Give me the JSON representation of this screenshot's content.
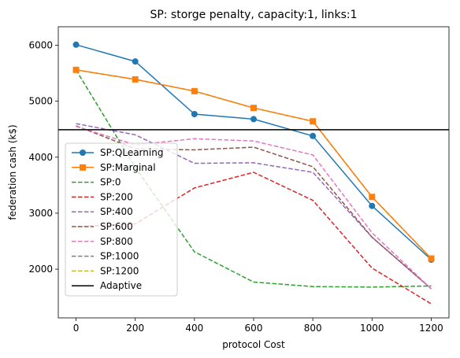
{
  "chart_data": {
    "type": "line",
    "title": "SP: storge penalty, capacity:1, links:1",
    "xlabel": "protocol Cost",
    "ylabel": "federation cash (k$)",
    "xlim": [
      -60,
      1260
    ],
    "ylim": [
      1130,
      6330
    ],
    "x_ticks": [
      0,
      200,
      400,
      600,
      800,
      1000,
      1200
    ],
    "y_ticks": [
      2000,
      3000,
      4000,
      5000,
      6000
    ],
    "grid": false,
    "legend_position": "lower-left",
    "x": [
      0,
      200,
      400,
      600,
      800,
      1000,
      1200
    ],
    "series": [
      {
        "name": "SP:QLearning",
        "color": "#1f77b4",
        "style": "solid",
        "marker": "circle",
        "values": [
          6010,
          5710,
          4770,
          4680,
          4380,
          3130,
          2170
        ]
      },
      {
        "name": "SP:Marginal",
        "color": "#ff7f0e",
        "style": "solid",
        "marker": "square",
        "values": [
          5560,
          5390,
          5180,
          4880,
          4640,
          3290,
          2190
        ]
      },
      {
        "name": "SP:0",
        "color": "#2ca02c",
        "style": "dashed",
        "marker": "none",
        "values": [
          5560,
          3820,
          2310,
          1770,
          1690,
          1680,
          1700
        ]
      },
      {
        "name": "SP:200",
        "color": "#d62728",
        "style": "dashed",
        "marker": "none",
        "values": [
          2760,
          2810,
          3450,
          3730,
          3230,
          2020,
          1380
        ]
      },
      {
        "name": "SP:400",
        "color": "#9467bd",
        "style": "dashed",
        "marker": "none",
        "values": [
          4600,
          4400,
          3890,
          3900,
          3730,
          2570,
          1650
        ]
      },
      {
        "name": "SP:600",
        "color": "#8c564b",
        "style": "dashed",
        "marker": "none",
        "values": [
          4560,
          4150,
          4130,
          4180,
          3830,
          2570,
          1650
        ]
      },
      {
        "name": "SP:800",
        "color": "#e377c2",
        "style": "dashed",
        "marker": "none",
        "values": [
          4550,
          4220,
          4330,
          4290,
          4040,
          2650,
          1650
        ]
      },
      {
        "name": "SP:1000",
        "color": "#7f7f7f",
        "style": "dashed",
        "marker": "none",
        "values": [
          5560,
          5390,
          5180,
          4880,
          4640,
          3290,
          2190
        ]
      },
      {
        "name": "SP:1200",
        "color": "#bcbd22",
        "style": "dashed",
        "marker": "none",
        "values": [
          5560,
          5390,
          5180,
          4880,
          4640,
          3290,
          2190
        ]
      }
    ],
    "hlines": [
      {
        "name": "Adaptive",
        "color": "#000000",
        "style": "solid",
        "value": 4490
      }
    ],
    "legend_order": [
      "SP:QLearning",
      "SP:Marginal",
      "SP:0",
      "SP:200",
      "SP:400",
      "SP:600",
      "SP:800",
      "SP:1000",
      "SP:1200",
      "Adaptive"
    ]
  }
}
